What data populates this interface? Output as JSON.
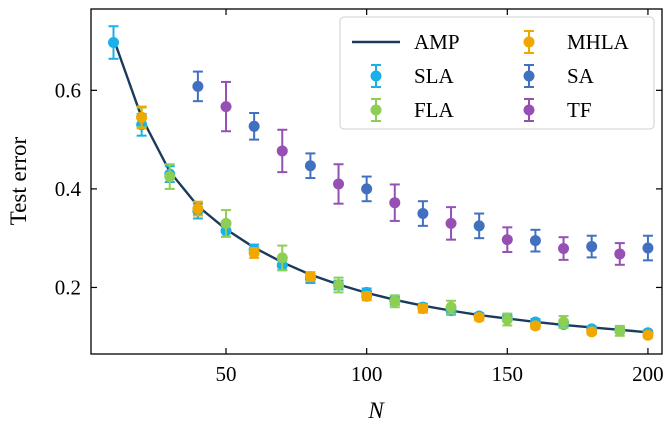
{
  "chart_data": {
    "type": "scatter",
    "xlabel": "N",
    "ylabel": "Test error",
    "xlim": [
      2,
      205
    ],
    "ylim": [
      0.065,
      0.765
    ],
    "xticks": [
      50,
      100,
      150,
      200
    ],
    "yticks": [
      0.2,
      0.4,
      0.6
    ],
    "xtick_labels": [
      "50",
      "100",
      "150",
      "200"
    ],
    "ytick_labels": [
      "0.2",
      "0.4",
      "0.6"
    ],
    "grid": false,
    "legend_position": "top-right",
    "line": {
      "name": "AMP",
      "color": "#1b3a5c",
      "x": [
        10,
        20,
        30,
        40,
        50,
        60,
        70,
        80,
        90,
        100,
        110,
        120,
        130,
        140,
        150,
        160,
        170,
        180,
        190,
        200
      ],
      "y": [
        0.705,
        0.545,
        0.435,
        0.365,
        0.318,
        0.281,
        0.251,
        0.226,
        0.206,
        0.189,
        0.175,
        0.163,
        0.153,
        0.144,
        0.137,
        0.13,
        0.124,
        0.119,
        0.114,
        0.109
      ]
    },
    "series": [
      {
        "name": "SLA",
        "color": "#1ab0e8",
        "x": [
          10,
          20,
          30,
          40,
          50,
          60,
          70,
          80,
          90,
          100,
          110,
          120,
          130,
          140,
          150,
          160,
          170,
          180,
          190,
          200
        ],
        "y": [
          0.697,
          0.53,
          0.43,
          0.355,
          0.315,
          0.277,
          0.245,
          0.218,
          0.205,
          0.19,
          0.173,
          0.16,
          0.153,
          0.142,
          0.138,
          0.13,
          0.125,
          0.116,
          0.113,
          0.108
        ],
        "err": [
          0.033,
          0.022,
          0.016,
          0.015,
          0.012,
          0.01,
          0.01,
          0.009,
          0.009,
          0.008,
          0.008,
          0.007,
          0.008,
          0.006,
          0.006,
          0.006,
          0.006,
          0.005,
          0.005,
          0.005
        ]
      },
      {
        "name": "FLA",
        "color": "#8dcf55",
        "x": [
          20,
          30,
          50,
          70,
          90,
          110,
          130,
          150,
          170,
          190
        ],
        "y": [
          0.545,
          0.425,
          0.33,
          0.26,
          0.205,
          0.172,
          0.16,
          0.135,
          0.13,
          0.112
        ],
        "err": [
          0.02,
          0.025,
          0.027,
          0.025,
          0.015,
          0.012,
          0.013,
          0.012,
          0.012,
          0.01
        ]
      },
      {
        "name": "MHLA",
        "color": "#f0a800",
        "x": [
          20,
          40,
          60,
          80,
          100,
          120,
          140,
          160,
          180,
          200
        ],
        "y": [
          0.545,
          0.36,
          0.27,
          0.222,
          0.182,
          0.157,
          0.139,
          0.122,
          0.11,
          0.103
        ],
        "err": [
          0.022,
          0.014,
          0.01,
          0.009,
          0.008,
          0.008,
          0.006,
          0.006,
          0.005,
          0.005
        ]
      },
      {
        "name": "SA",
        "color": "#4170c0",
        "x": [
          40,
          60,
          80,
          100,
          120,
          140,
          160,
          180,
          200
        ],
        "y": [
          0.608,
          0.527,
          0.447,
          0.4,
          0.35,
          0.325,
          0.295,
          0.283,
          0.28
        ],
        "err": [
          0.03,
          0.027,
          0.025,
          0.025,
          0.025,
          0.025,
          0.022,
          0.022,
          0.025
        ]
      },
      {
        "name": "TF",
        "color": "#9650b4",
        "x": [
          50,
          70,
          90,
          110,
          130,
          150,
          170,
          190
        ],
        "y": [
          0.567,
          0.477,
          0.41,
          0.372,
          0.33,
          0.297,
          0.279,
          0.268
        ],
        "err": [
          0.05,
          0.043,
          0.04,
          0.037,
          0.033,
          0.025,
          0.023,
          0.022
        ]
      }
    ],
    "legend": [
      {
        "label": "AMP",
        "kind": "line",
        "color": "#1b3a5c"
      },
      {
        "label": "MHLA",
        "kind": "marker",
        "color": "#f0a800"
      },
      {
        "label": "SLA",
        "kind": "marker",
        "color": "#1ab0e8"
      },
      {
        "label": "SA",
        "kind": "marker",
        "color": "#4170c0"
      },
      {
        "label": "FLA",
        "kind": "marker",
        "color": "#8dcf55"
      },
      {
        "label": "TF",
        "kind": "marker",
        "color": "#9650b4"
      }
    ]
  }
}
